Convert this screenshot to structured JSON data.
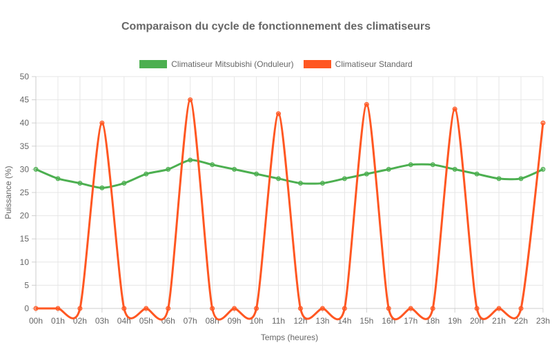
{
  "chart_data": {
    "type": "line",
    "title": "Comparaison du cycle de fonctionnement des climatiseurs",
    "xlabel": "Temps (heures)",
    "ylabel": "Puissance (%)",
    "ylim": [
      0,
      50
    ],
    "y_ticks": [
      0,
      5,
      10,
      15,
      20,
      25,
      30,
      35,
      40,
      45,
      50
    ],
    "grid": true,
    "legend_position": "top",
    "categories": [
      "00h",
      "01h",
      "02h",
      "03h",
      "04h",
      "05h",
      "06h",
      "07h",
      "08h",
      "09h",
      "10h",
      "11h",
      "12h",
      "13h",
      "14h",
      "15h",
      "16h",
      "17h",
      "18h",
      "19h",
      "20h",
      "21h",
      "22h",
      "23h"
    ],
    "series": [
      {
        "name": "Climatiseur Mitsubishi (Onduleur)",
        "color": "#4caf50",
        "values": [
          30,
          28,
          27,
          26,
          27,
          29,
          30,
          32,
          31,
          30,
          29,
          28,
          27,
          27,
          28,
          29,
          30,
          31,
          31,
          30,
          29,
          28,
          28,
          30
        ]
      },
      {
        "name": "Climatiseur Standard",
        "color": "#ff5722",
        "values": [
          0,
          0,
          0,
          40,
          0,
          0,
          0,
          45,
          0,
          0,
          0,
          42,
          0,
          0,
          0,
          44,
          0,
          0,
          0,
          43,
          0,
          0,
          0,
          40
        ]
      }
    ]
  }
}
